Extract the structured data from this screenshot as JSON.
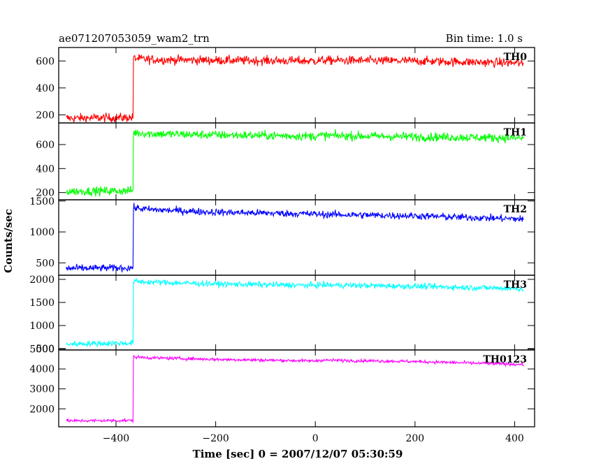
{
  "header": {
    "title": "ae071207053059_wam2_trn",
    "bin_time": "Bin time: 1.0 s"
  },
  "chart_data": {
    "type": "line",
    "title": "ae071207053059_wam2_trn",
    "subtitle": "Bin time: 1.0 s",
    "xlabel": "Time [sec] 0 = 2007/12/07 05:30:59",
    "ylabel": "Counts/sec",
    "xlim": [
      -515,
      440
    ],
    "x_ticks": [
      -400,
      -200,
      0,
      200,
      400
    ],
    "x_tick_labels": [
      "−400",
      "−200",
      "0",
      "200",
      "400"
    ],
    "grid": false,
    "x_breakpoints": [
      -500,
      -366,
      -365,
      -330,
      -200,
      0,
      10,
      200,
      410,
      418
    ],
    "panels": [
      {
        "name": "TH0",
        "color": "#ff0000",
        "ylim": [
          140,
          700
        ],
        "y_ticks": [
          200,
          400,
          600
        ],
        "y_tick_labels": [
          "200",
          "400",
          "600"
        ],
        "mean": [
          175,
          180,
          620,
          610,
          605,
          600,
          605,
          600,
          585,
          570
        ],
        "noise": 32
      },
      {
        "name": "TH1",
        "color": "#00ff00",
        "ylim": [
          140,
          780
        ],
        "y_ticks": [
          200,
          400,
          600
        ],
        "y_tick_labels": [
          "200",
          "400",
          "600"
        ],
        "mean": [
          210,
          215,
          700,
          690,
          680,
          670,
          675,
          665,
          655,
          650
        ],
        "noise": 35
      },
      {
        "name": "TH2",
        "color": "#0000ff",
        "ylim": [
          300,
          1520
        ],
        "y_ticks": [
          500,
          1000,
          1500
        ],
        "y_tick_labels": [
          "500",
          "1000",
          "1500"
        ],
        "mean": [
          410,
          420,
          1390,
          1360,
          1320,
          1290,
          1285,
          1260,
          1210,
          1200
        ],
        "noise": 55
      },
      {
        "name": "TH3",
        "color": "#00ffff",
        "ylim": [
          470,
          2090
        ],
        "y_ticks": [
          500,
          1000,
          1500,
          2000
        ],
        "y_tick_labels": [
          "500",
          "1000",
          "1500",
          "2000"
        ],
        "mean": [
          600,
          620,
          1960,
          1940,
          1900,
          1870,
          1880,
          1850,
          1800,
          1790
        ],
        "noise": 60
      },
      {
        "name": "TH0123",
        "color": "#ff00ff",
        "ylim": [
          1100,
          4950
        ],
        "y_ticks": [
          2000,
          3000,
          4000,
          5000
        ],
        "y_tick_labels": [
          "2000",
          "3000",
          "4000",
          "5000"
        ],
        "mean": [
          1400,
          1420,
          4600,
          4560,
          4480,
          4400,
          4440,
          4370,
          4230,
          4220
        ],
        "noise": 75
      }
    ]
  }
}
